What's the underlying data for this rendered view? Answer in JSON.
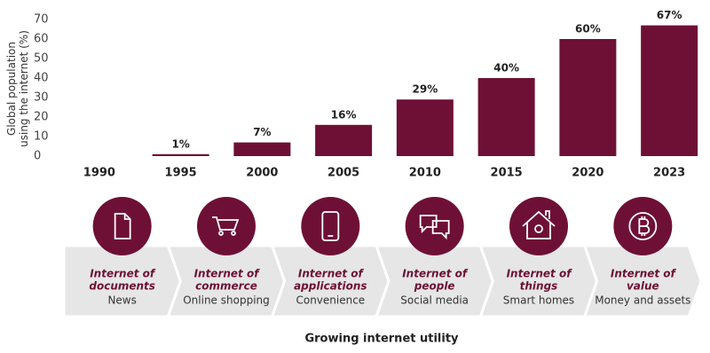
{
  "chart_data": {
    "type": "bar",
    "y_label": [
      "Global population",
      "using the internet (%)"
    ],
    "categories": [
      "1990",
      "1995",
      "2000",
      "2005",
      "2010",
      "2015",
      "2020",
      "2023"
    ],
    "values": [
      0,
      1,
      7,
      16,
      29,
      40,
      60,
      67
    ],
    "value_labels": [
      null,
      "1%",
      "7%",
      "16%",
      "29%",
      "40%",
      "60%",
      "67%"
    ],
    "color": "#6e1035",
    "ylim": [
      0,
      70
    ],
    "yticks": [
      0,
      10,
      20,
      30,
      40,
      50,
      60,
      70
    ],
    "grid": false
  },
  "steps": [
    {
      "title": [
        "Internet of",
        "documents"
      ],
      "subtitle": "News"
    },
    {
      "title": [
        "Internet of",
        "commerce"
      ],
      "subtitle": "Online shopping"
    },
    {
      "title": [
        "Internet of",
        "applications"
      ],
      "subtitle": "Convenience"
    },
    {
      "title": [
        "Internet of",
        "people"
      ],
      "subtitle": "Social media"
    },
    {
      "title": [
        "Internet of",
        "things"
      ],
      "subtitle": "Smart homes"
    },
    {
      "title": [
        "Internet of",
        "value"
      ],
      "subtitle": "Money and assets"
    }
  ],
  "footer": "Growing internet utility"
}
